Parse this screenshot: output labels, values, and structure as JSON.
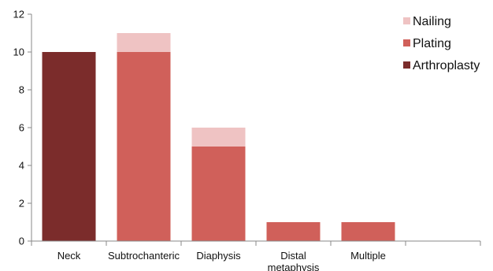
{
  "chart_data": {
    "type": "bar",
    "stacked": true,
    "categories": [
      "Neck",
      "Subtrochanteric",
      "Diaphysis",
      "Distal metaphysis",
      "Multiple",
      ""
    ],
    "category_lines": [
      [
        "Neck"
      ],
      [
        "Subtrochanteric"
      ],
      [
        "Diaphysis"
      ],
      [
        "Distal",
        "metaphysis"
      ],
      [
        "Multiple"
      ],
      [
        ""
      ]
    ],
    "series": [
      {
        "name": "Arthroplasty",
        "color": "#7b2c2b",
        "values": [
          10,
          0,
          0,
          0,
          0,
          0
        ]
      },
      {
        "name": "Plating",
        "color": "#d0605a",
        "values": [
          0,
          10,
          5,
          1,
          1,
          0
        ]
      },
      {
        "name": "Nailing",
        "color": "#efc3c3",
        "values": [
          0,
          1,
          1,
          0,
          0,
          0
        ]
      }
    ],
    "legend_order": [
      "Nailing",
      "Plating",
      "Arthroplasty"
    ],
    "legend_position": "top-right",
    "ylim": [
      0,
      12
    ],
    "yticks": [
      "0",
      "2",
      "4",
      "6",
      "8",
      "10",
      "12"
    ],
    "grid": false,
    "title": "",
    "xlabel": "",
    "ylabel": ""
  }
}
